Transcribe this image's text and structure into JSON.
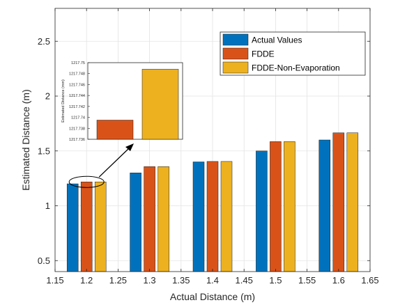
{
  "chart_data": {
    "type": "bar",
    "xlabel": "Actual Distance (m)",
    "ylabel": "Estimated Distance (m)",
    "xlim": [
      1.15,
      1.65
    ],
    "ylim": [
      0.4,
      2.8
    ],
    "x_ticks": [
      "1.15",
      "1.2",
      "1.25",
      "1.3",
      "1.35",
      "1.4",
      "1.45",
      "1.5",
      "1.55",
      "1.6",
      "1.65"
    ],
    "y_ticks": [
      "0.5",
      "1",
      "1.5",
      "2",
      "2.5"
    ],
    "x_tick_values": [
      1.15,
      1.2,
      1.25,
      1.3,
      1.35,
      1.4,
      1.45,
      1.5,
      1.55,
      1.6,
      1.65
    ],
    "y_tick_values": [
      0.5,
      1,
      1.5,
      2,
      2.5
    ],
    "grid": true,
    "legend_position": "top-right",
    "categories": [
      1.2,
      1.3,
      1.4,
      1.5,
      1.6
    ],
    "series": [
      {
        "name": "Actual Values",
        "color": "#0072BD",
        "values": [
          1.2,
          1.3,
          1.4,
          1.5,
          1.6
        ]
      },
      {
        "name": "FDDE",
        "color": "#D95319",
        "values": [
          1.2177,
          1.357,
          1.404,
          1.585,
          1.665
        ]
      },
      {
        "name": "FDDE-Non-Evaporation",
        "color": "#EDB120",
        "values": [
          1.2177,
          1.357,
          1.404,
          1.585,
          1.665
        ]
      }
    ],
    "inset": {
      "ylabel": "Estimated Distance (mm)",
      "ylim": [
        1217.736,
        1217.75
      ],
      "y_ticks": [
        "1217.75",
        "1217.748",
        "1217.746",
        "1217.744",
        "1217.742",
        "1217.74",
        "1217.738",
        "1217.736"
      ],
      "y_tick_values": [
        1217.75,
        1217.748,
        1217.746,
        1217.744,
        1217.742,
        1217.74,
        1217.738,
        1217.736
      ],
      "series": [
        {
          "name": "FDDE",
          "color": "#D95319",
          "value": 1217.7395
        },
        {
          "name": "FDDE-Non-Evaporation",
          "color": "#EDB120",
          "value": 1217.7488
        }
      ]
    }
  }
}
